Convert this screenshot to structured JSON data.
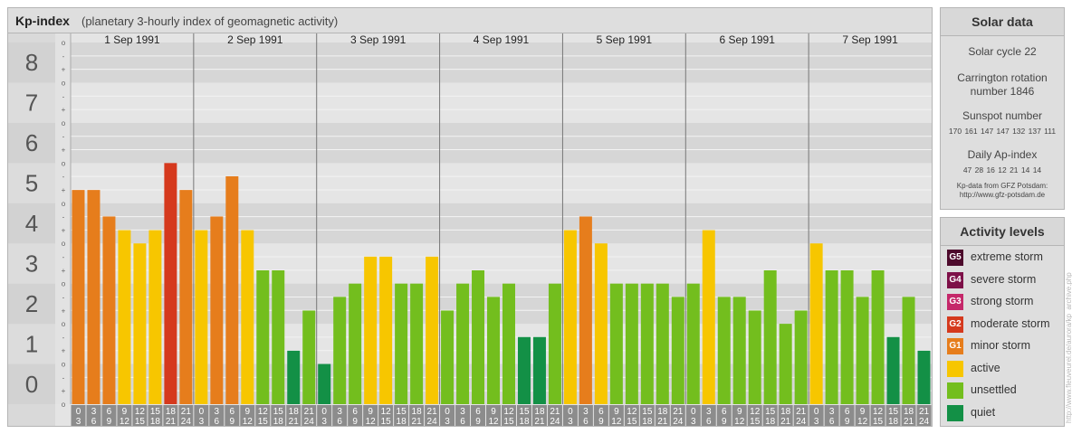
{
  "header": {
    "title": "Kp-index",
    "subtitle": "(planetary 3-hourly index of geomagnetic activity)"
  },
  "colors": {
    "quiet": "#139046",
    "unsettled": "#73be1e",
    "active": "#f7c600",
    "minor_storm": "#e67d1c",
    "moderate_storm": "#d5391d",
    "strong_storm": "#c5286a",
    "severe_storm": "#7d1048",
    "extreme_storm": "#4d0a2c"
  },
  "chart_data": {
    "type": "bar",
    "title": "Kp-index",
    "ylim": [
      0,
      9
    ],
    "y_ticks": [
      "0",
      "1",
      "2",
      "3",
      "4",
      "5",
      "6",
      "7",
      "8",
      "9"
    ],
    "minor_tick_labels": [
      "o",
      "+",
      "-"
    ],
    "days": [
      "1 Sep 1991",
      "2 Sep 1991",
      "3 Sep 1991",
      "4 Sep 1991",
      "5 Sep 1991",
      "6 Sep 1991",
      "7 Sep 1991"
    ],
    "interval_start_labels": [
      "0",
      "3",
      "6",
      "9",
      "12",
      "15",
      "18",
      "21"
    ],
    "interval_end_labels": [
      "3",
      "6",
      "9",
      "12",
      "15",
      "18",
      "21",
      "24"
    ],
    "values": [
      [
        5.33,
        5.33,
        4.67,
        4.33,
        4.0,
        4.33,
        6.0,
        5.33
      ],
      [
        4.33,
        4.67,
        5.67,
        4.33,
        3.33,
        3.33,
        1.33,
        2.33
      ],
      [
        1.0,
        2.67,
        3.0,
        3.67,
        3.67,
        3.0,
        3.0,
        3.67
      ],
      [
        2.33,
        3.0,
        3.33,
        2.67,
        3.0,
        1.67,
        1.67,
        3.0
      ],
      [
        4.33,
        4.67,
        4.0,
        3.0,
        3.0,
        3.0,
        3.0,
        2.67
      ],
      [
        3.0,
        4.33,
        2.67,
        2.67,
        2.33,
        3.33,
        2.0,
        2.33
      ],
      [
        4.0,
        3.33,
        3.33,
        2.67,
        3.33,
        1.67,
        2.67,
        1.33
      ]
    ]
  },
  "solar": {
    "title": "Solar data",
    "cycle": "Solar cycle 22",
    "carrington_1": "Carrington rotation",
    "carrington_2": "number 1846",
    "sunspot_label": "Sunspot number",
    "sunspot_values": "170 161 147 147 132 137 111",
    "ap_label": "Daily Ap-index",
    "ap_values": "47 28 16 12 21 14 14",
    "source_1": "Kp-data from GFZ Potsdam:",
    "source_2": "http://www.gfz-potsdam.de"
  },
  "activity": {
    "title": "Activity levels",
    "items": [
      {
        "badge": "G5",
        "label": "extreme storm",
        "color": "#4d0a2c"
      },
      {
        "badge": "G4",
        "label": "severe storm",
        "color": "#7d1048"
      },
      {
        "badge": "G3",
        "label": "strong storm",
        "color": "#c5286a"
      },
      {
        "badge": "G2",
        "label": "moderate storm",
        "color": "#d5391d"
      },
      {
        "badge": "G1",
        "label": "minor storm",
        "color": "#e67d1c"
      },
      {
        "badge": "",
        "label": "active",
        "color": "#f7c600"
      },
      {
        "badge": "",
        "label": "unsettled",
        "color": "#73be1e"
      },
      {
        "badge": "",
        "label": "quiet",
        "color": "#139046"
      }
    ]
  },
  "watermark": "http://www.fleuveurel.de/aurora/kp_archive.php"
}
